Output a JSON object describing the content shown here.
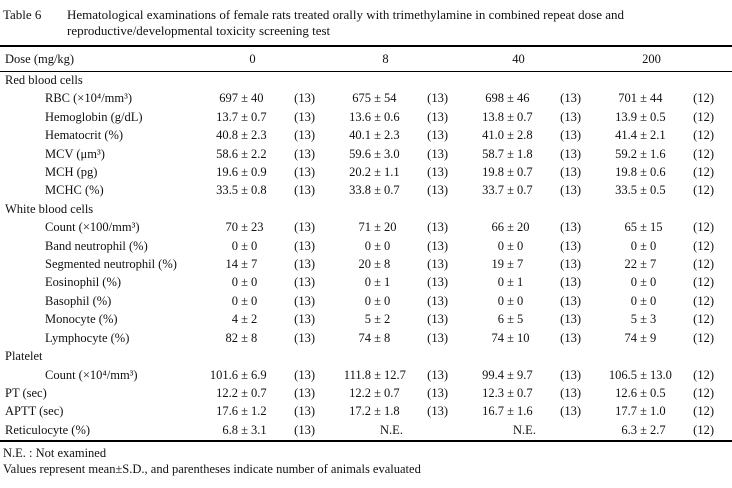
{
  "title": {
    "label": "Table 6",
    "text": "Hematological examinations of female rats treated orally with trimethylamine in combined repeat dose and reproductive/developmental toxicity screening test"
  },
  "table": {
    "dose_label": "Dose (mg/kg)",
    "doses": [
      "0",
      "8",
      "40",
      "200"
    ],
    "pm_sign": "±",
    "rows": [
      {
        "type": "section",
        "label": "Red blood cells"
      },
      {
        "type": "data",
        "indent": true,
        "label": "RBC (×10⁴/mm³)",
        "cells": [
          {
            "m": "697",
            "s": "40",
            "n": "(13)"
          },
          {
            "m": "675",
            "s": "54",
            "n": "(13)"
          },
          {
            "m": "698",
            "s": "46",
            "n": "(13)"
          },
          {
            "m": "701",
            "s": "44",
            "n": "(12)"
          }
        ]
      },
      {
        "type": "data",
        "indent": true,
        "label": "Hemoglobin (g/dL)",
        "cells": [
          {
            "m": "13.7",
            "s": "0.7",
            "n": "(13)"
          },
          {
            "m": "13.6",
            "s": "0.6",
            "n": "(13)"
          },
          {
            "m": "13.8",
            "s": "0.7",
            "n": "(13)"
          },
          {
            "m": "13.9",
            "s": "0.5",
            "n": "(12)"
          }
        ]
      },
      {
        "type": "data",
        "indent": true,
        "label": "Hematocrit (%)",
        "cells": [
          {
            "m": "40.8",
            "s": "2.3",
            "n": "(13)"
          },
          {
            "m": "40.1",
            "s": "2.3",
            "n": "(13)"
          },
          {
            "m": "41.0",
            "s": "2.8",
            "n": "(13)"
          },
          {
            "m": "41.4",
            "s": "2.1",
            "n": "(12)"
          }
        ]
      },
      {
        "type": "data",
        "indent": true,
        "label": "MCV (μm³)",
        "cells": [
          {
            "m": "58.6",
            "s": "2.2",
            "n": "(13)"
          },
          {
            "m": "59.6",
            "s": "3.0",
            "n": "(13)"
          },
          {
            "m": "58.7",
            "s": "1.8",
            "n": "(13)"
          },
          {
            "m": "59.2",
            "s": "1.6",
            "n": "(12)"
          }
        ]
      },
      {
        "type": "data",
        "indent": true,
        "label": "MCH (pg)",
        "cells": [
          {
            "m": "19.6",
            "s": "0.9",
            "n": "(13)"
          },
          {
            "m": "20.2",
            "s": "1.1",
            "n": "(13)"
          },
          {
            "m": "19.8",
            "s": "0.7",
            "n": "(13)"
          },
          {
            "m": "19.8",
            "s": "0.6",
            "n": "(12)"
          }
        ]
      },
      {
        "type": "data",
        "indent": true,
        "label": "MCHC (%)",
        "cells": [
          {
            "m": "33.5",
            "s": "0.8",
            "n": "(13)"
          },
          {
            "m": "33.8",
            "s": "0.7",
            "n": "(13)"
          },
          {
            "m": "33.7",
            "s": "0.7",
            "n": "(13)"
          },
          {
            "m": "33.5",
            "s": "0.5",
            "n": "(12)"
          }
        ]
      },
      {
        "type": "section",
        "label": "White blood cells"
      },
      {
        "type": "data",
        "indent": true,
        "label": "Count (×100/mm³)",
        "cells": [
          {
            "m": "70",
            "s": "23",
            "n": "(13)"
          },
          {
            "m": "71",
            "s": "20",
            "n": "(13)"
          },
          {
            "m": "66",
            "s": "20",
            "n": "(13)"
          },
          {
            "m": "65",
            "s": "15",
            "n": "(12)"
          }
        ]
      },
      {
        "type": "data",
        "indent": true,
        "label": "Band neutrophil (%)",
        "cells": [
          {
            "m": "0",
            "s": "0",
            "n": "(13)"
          },
          {
            "m": "0",
            "s": "0",
            "n": "(13)"
          },
          {
            "m": "0",
            "s": "0",
            "n": "(13)"
          },
          {
            "m": "0",
            "s": "0",
            "n": "(12)"
          }
        ]
      },
      {
        "type": "data",
        "indent": true,
        "label": "Segmented neutrophil (%)",
        "cells": [
          {
            "m": "14",
            "s": "7",
            "n": "(13)"
          },
          {
            "m": "20",
            "s": "8",
            "n": "(13)"
          },
          {
            "m": "19",
            "s": "7",
            "n": "(13)"
          },
          {
            "m": "22",
            "s": "7",
            "n": "(12)"
          }
        ]
      },
      {
        "type": "data",
        "indent": true,
        "label": "Eosinophil (%)",
        "cells": [
          {
            "m": "0",
            "s": "0",
            "n": "(13)"
          },
          {
            "m": "0",
            "s": "1",
            "n": "(13)"
          },
          {
            "m": "0",
            "s": "1",
            "n": "(13)"
          },
          {
            "m": "0",
            "s": "0",
            "n": "(12)"
          }
        ]
      },
      {
        "type": "data",
        "indent": true,
        "label": "Basophil (%)",
        "cells": [
          {
            "m": "0",
            "s": "0",
            "n": "(13)"
          },
          {
            "m": "0",
            "s": "0",
            "n": "(13)"
          },
          {
            "m": "0",
            "s": "0",
            "n": "(13)"
          },
          {
            "m": "0",
            "s": "0",
            "n": "(12)"
          }
        ]
      },
      {
        "type": "data",
        "indent": true,
        "label": "Monocyte (%)",
        "cells": [
          {
            "m": "4",
            "s": "2",
            "n": "(13)"
          },
          {
            "m": "5",
            "s": "2",
            "n": "(13)"
          },
          {
            "m": "6",
            "s": "5",
            "n": "(13)"
          },
          {
            "m": "5",
            "s": "3",
            "n": "(12)"
          }
        ]
      },
      {
        "type": "data",
        "indent": true,
        "label": "Lymphocyte (%)",
        "cells": [
          {
            "m": "82",
            "s": "8",
            "n": "(13)"
          },
          {
            "m": "74",
            "s": "8",
            "n": "(13)"
          },
          {
            "m": "74",
            "s": "10",
            "n": "(13)"
          },
          {
            "m": "74",
            "s": "9",
            "n": "(12)"
          }
        ]
      },
      {
        "type": "section",
        "label": "Platelet"
      },
      {
        "type": "data",
        "indent": true,
        "label": "Count (×10⁴/mm³)",
        "cells": [
          {
            "m": "101.6",
            "s": "6.9",
            "n": "(13)"
          },
          {
            "m": "111.8",
            "s": "12.7",
            "n": "(13)"
          },
          {
            "m": "99.4",
            "s": "9.7",
            "n": "(13)"
          },
          {
            "m": "106.5",
            "s": "13.0",
            "n": "(12)"
          }
        ]
      },
      {
        "type": "data",
        "indent": false,
        "label": "PT (sec)",
        "cells": [
          {
            "m": "12.2",
            "s": "0.7",
            "n": "(13)"
          },
          {
            "m": "12.2",
            "s": "0.7",
            "n": "(13)"
          },
          {
            "m": "12.3",
            "s": "0.7",
            "n": "(13)"
          },
          {
            "m": "12.6",
            "s": "0.5",
            "n": "(12)"
          }
        ]
      },
      {
        "type": "data",
        "indent": false,
        "label": "APTT (sec)",
        "cells": [
          {
            "m": "17.6",
            "s": "1.2",
            "n": "(13)"
          },
          {
            "m": "17.2",
            "s": "1.8",
            "n": "(13)"
          },
          {
            "m": "16.7",
            "s": "1.6",
            "n": "(13)"
          },
          {
            "m": "17.7",
            "s": "1.0",
            "n": "(12)"
          }
        ]
      },
      {
        "type": "data",
        "indent": false,
        "label": "Reticulocyte (%)",
        "cells": [
          {
            "m": "6.8",
            "s": "3.1",
            "n": "(13)"
          },
          {
            "ne": "N.E."
          },
          {
            "ne": "N.E."
          },
          {
            "m": "6.3",
            "s": "2.7",
            "n": "(12)"
          }
        ]
      }
    ]
  },
  "footnotes": [
    "N.E. : Not examined",
    "Values represent mean±S.D., and parentheses indicate number of animals evaluated"
  ]
}
